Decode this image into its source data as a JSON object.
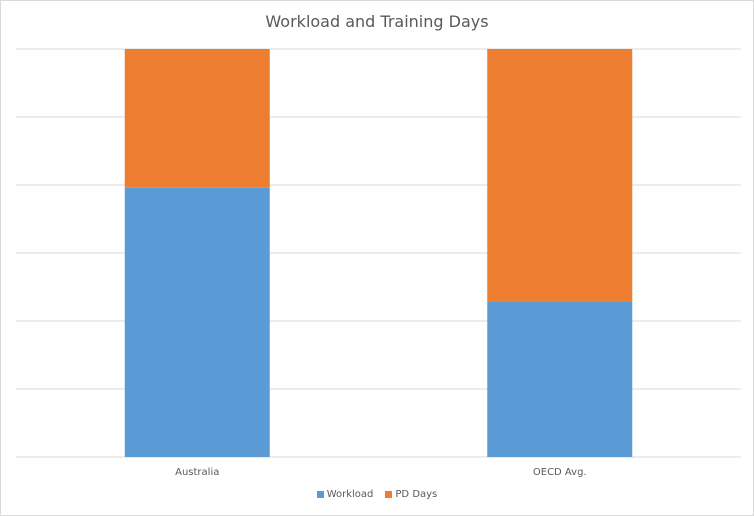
{
  "chart_data": {
    "type": "bar",
    "stacked": true,
    "percent_stacked": true,
    "title": "Workload and Training Days",
    "categories": [
      "Australia",
      "OECD Avg."
    ],
    "series": [
      {
        "name": "Workload",
        "values": [
          66,
          38
        ],
        "color": "#5b9bd5"
      },
      {
        "name": "PD Days",
        "values": [
          34,
          62
        ],
        "color": "#ed7d31"
      }
    ],
    "ylim": [
      0,
      100
    ],
    "gridlines": 6,
    "grid": true,
    "legend": "bottom",
    "axis_tick_labels_y": false
  }
}
